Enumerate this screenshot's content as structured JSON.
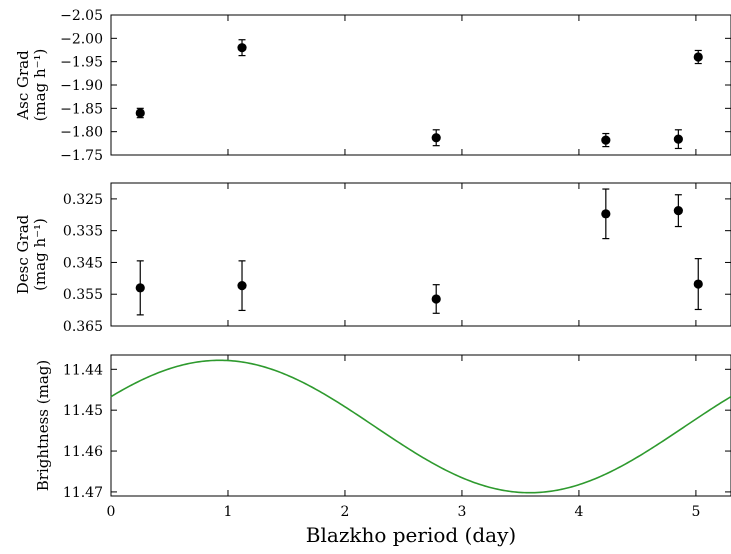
{
  "chart_data": [
    {
      "type": "scatter",
      "ylabel": [
        "Asc Grad",
        "(mag h⁻¹)"
      ],
      "ylim": [
        -1.75,
        -2.05
      ],
      "y_inverted": true,
      "yticks": [
        -2.05,
        -2.0,
        -1.95,
        -1.9,
        -1.85,
        -1.8,
        -1.75
      ],
      "ytick_labels": [
        "−2.05",
        "−2.00",
        "−1.95",
        "−1.90",
        "−1.85",
        "−1.80",
        "−1.75"
      ],
      "xlim": [
        0,
        5.3
      ],
      "series": [
        {
          "marker": "circle",
          "color": "#000000",
          "points": [
            {
              "x": 0.25,
              "y": -1.84,
              "err": 0.01
            },
            {
              "x": 1.12,
              "y": -1.98,
              "err": 0.017
            },
            {
              "x": 2.78,
              "y": -1.787,
              "err": 0.017
            },
            {
              "x": 4.23,
              "y": -1.782,
              "err": 0.014
            },
            {
              "x": 4.85,
              "y": -1.784,
              "err": 0.02
            },
            {
              "x": 5.02,
              "y": -1.96,
              "err": 0.014
            }
          ]
        }
      ]
    },
    {
      "type": "scatter",
      "ylabel": [
        "Desc Grad",
        "(mag h⁻¹)"
      ],
      "ylim": [
        0.365,
        0.32
      ],
      "y_inverted": true,
      "yticks": [
        0.325,
        0.335,
        0.345,
        0.355,
        0.365
      ],
      "ytick_labels": [
        "0.325",
        "0.335",
        "0.345",
        "0.355",
        "0.365"
      ],
      "xlim": [
        0,
        5.3
      ],
      "series": [
        {
          "marker": "circle",
          "color": "#000000",
          "points": [
            {
              "x": 0.25,
              "y": 0.353,
              "err": 0.0085
            },
            {
              "x": 1.12,
              "y": 0.3523,
              "err": 0.0078
            },
            {
              "x": 2.78,
              "y": 0.3565,
              "err": 0.0045
            },
            {
              "x": 4.23,
              "y": 0.3297,
              "err": 0.0078
            },
            {
              "x": 4.85,
              "y": 0.3287,
              "err": 0.005
            },
            {
              "x": 5.02,
              "y": 0.3518,
              "err": 0.008
            }
          ]
        }
      ]
    },
    {
      "type": "line",
      "ylabel": [
        "Brightness (mag)"
      ],
      "ylim": [
        11.471,
        11.4365
      ],
      "y_inverted": true,
      "yticks": [
        11.44,
        11.45,
        11.46,
        11.47
      ],
      "ytick_labels": [
        "11.44",
        "11.45",
        "11.46",
        "11.47"
      ],
      "xlim": [
        0,
        5.3
      ],
      "xticks": [
        0,
        1,
        2,
        3,
        4,
        5
      ],
      "xtick_labels": [
        "0",
        "1",
        "2",
        "3",
        "4",
        "5"
      ],
      "xlabel": "Blazkho period (day)",
      "series": [
        {
          "color": "#2e9a2e",
          "function": "sinusoid",
          "mean": 11.454,
          "amplitude": 0.0162,
          "period": 5.3,
          "phase_of_brightest": 0.93
        }
      ]
    }
  ]
}
